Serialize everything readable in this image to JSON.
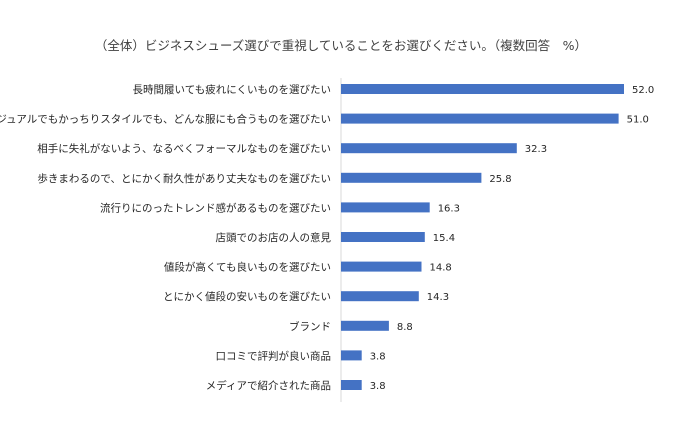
{
  "chart_data": {
    "type": "bar",
    "orientation": "horizontal",
    "title": "（全体）ビジネスシューズ選びで重視していることをお選びください。（複数回答　%）",
    "xlabel": "",
    "ylabel": "",
    "xlim": [
      0,
      52
    ],
    "grid": false,
    "legend": false,
    "bar_color": "#4472C4",
    "categories": [
      "長時間履いても疲れにくいものを選びたい",
      "カジュアルでもかっちりスタイルでも、どんな服にも合うものを選びたい",
      "相手に失礼がないよう、なるべくフォーマルなものを選びたい",
      "歩きまわるので、とにかく耐久性があり丈夫なものを選びたい",
      "流行りにのったトレンド感があるものを選びたい",
      "店頭でのお店の人の意見",
      "値段が高くても良いものを選びたい",
      "とにかく値段の安いものを選びたい",
      "ブランド",
      "口コミで評判が良い商品",
      "メディアで紹介された商品"
    ],
    "values": [
      52.0,
      51.0,
      32.3,
      25.8,
      16.3,
      15.4,
      14.8,
      14.3,
      8.8,
      3.8,
      3.8
    ],
    "value_labels": [
      "52.0",
      "51.0",
      "32.3",
      "25.8",
      "16.3",
      "15.4",
      "14.8",
      "14.3",
      "8.8",
      "3.8",
      "3.8"
    ]
  }
}
